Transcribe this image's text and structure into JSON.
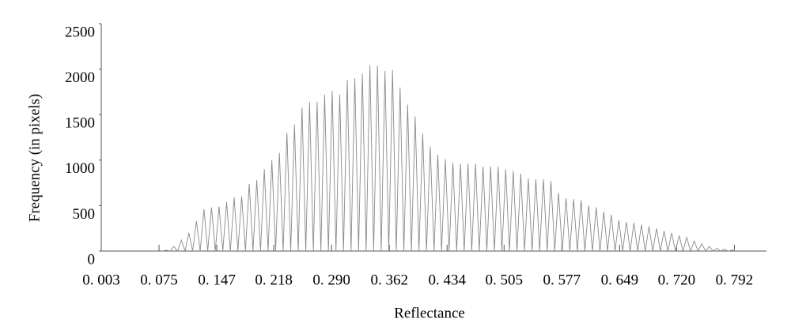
{
  "chart_data": {
    "type": "line",
    "xlabel": "Reflectance",
    "ylabel": "Frequency (in pixels)",
    "xlim": [
      0.003,
      0.832
    ],
    "ylim": [
      0,
      2500
    ],
    "xticks": [
      {
        "value": 0.003,
        "label": "0. 003"
      },
      {
        "value": 0.075,
        "label": "0. 075"
      },
      {
        "value": 0.147,
        "label": "0. 147"
      },
      {
        "value": 0.218,
        "label": "0. 218"
      },
      {
        "value": 0.29,
        "label": "0. 290"
      },
      {
        "value": 0.362,
        "label": "0. 362"
      },
      {
        "value": 0.434,
        "label": "0. 434"
      },
      {
        "value": 0.505,
        "label": "0. 505"
      },
      {
        "value": 0.577,
        "label": "0. 577"
      },
      {
        "value": 0.649,
        "label": "0. 649"
      },
      {
        "value": 0.72,
        "label": "0. 720"
      },
      {
        "value": 0.792,
        "label": "0. 792"
      }
    ],
    "yticks": [
      0,
      500,
      1000,
      1500,
      2000,
      2500
    ],
    "grid": false,
    "color": "#8a8a8a",
    "x": [
      0.0793,
      0.084,
      0.0887,
      0.0934,
      0.0981,
      0.1028,
      0.1075,
      0.1122,
      0.1169,
      0.1216,
      0.1263,
      0.131,
      0.1357,
      0.1404,
      0.1451,
      0.1498,
      0.1545,
      0.1592,
      0.1639,
      0.1686,
      0.1733,
      0.178,
      0.1827,
      0.1874,
      0.1921,
      0.1968,
      0.2015,
      0.2062,
      0.2109,
      0.2156,
      0.2203,
      0.225,
      0.2297,
      0.2344,
      0.2391,
      0.2438,
      0.2485,
      0.2532,
      0.2579,
      0.2626,
      0.2673,
      0.272,
      0.2767,
      0.2814,
      0.2861,
      0.2908,
      0.2955,
      0.3002,
      0.3049,
      0.3096,
      0.3143,
      0.319,
      0.3237,
      0.3284,
      0.3331,
      0.3378,
      0.3425,
      0.3472,
      0.3519,
      0.3566,
      0.3613,
      0.366,
      0.3707,
      0.3754,
      0.3801,
      0.3848,
      0.3895,
      0.3942,
      0.3989,
      0.4036,
      0.4083,
      0.413,
      0.4177,
      0.4224,
      0.4271,
      0.4318,
      0.4365,
      0.4412,
      0.4459,
      0.4506,
      0.4553,
      0.46,
      0.4647,
      0.4694,
      0.4741,
      0.4788,
      0.4835,
      0.4882,
      0.4929,
      0.4976,
      0.5023,
      0.507,
      0.5117,
      0.5164,
      0.5211,
      0.5258,
      0.5305,
      0.5352,
      0.5399,
      0.5446,
      0.5493,
      0.554,
      0.5587,
      0.5634,
      0.5681,
      0.5728,
      0.5775,
      0.5822,
      0.5869,
      0.5916,
      0.5963,
      0.601,
      0.6057,
      0.6104,
      0.6151,
      0.6198,
      0.6245,
      0.6292,
      0.6339,
      0.6386,
      0.6433,
      0.648,
      0.6527,
      0.6574,
      0.6621,
      0.6668,
      0.6715,
      0.6762,
      0.6809,
      0.6856,
      0.6903,
      0.695,
      0.6997,
      0.7044,
      0.7091,
      0.7138,
      0.7185,
      0.7232,
      0.7279,
      0.7326,
      0.7373,
      0.742,
      0.7467,
      0.7514,
      0.7561,
      0.7608,
      0.7655,
      0.7702,
      0.7749,
      0.7796,
      0.7843,
      0.789,
      0.7937
    ],
    "values": [
      0,
      10,
      0,
      50,
      0,
      120,
      0,
      200,
      0,
      330,
      0,
      460,
      0,
      480,
      0,
      490,
      0,
      540,
      0,
      590,
      0,
      600,
      0,
      740,
      0,
      780,
      0,
      900,
      0,
      1000,
      0,
      1080,
      0,
      1300,
      0,
      1390,
      0,
      1580,
      0,
      1640,
      0,
      1640,
      0,
      1720,
      0,
      1760,
      0,
      1720,
      0,
      1880,
      0,
      1900,
      0,
      1950,
      0,
      2040,
      0,
      2040,
      0,
      1980,
      0,
      1990,
      0,
      1800,
      0,
      1610,
      0,
      1480,
      0,
      1290,
      0,
      1150,
      0,
      1060,
      0,
      1010,
      0,
      970,
      0,
      960,
      0,
      960,
      0,
      960,
      0,
      930,
      0,
      930,
      0,
      930,
      0,
      900,
      0,
      880,
      0,
      850,
      0,
      800,
      0,
      790,
      0,
      790,
      0,
      770,
      0,
      640,
      0,
      580,
      0,
      570,
      0,
      560,
      0,
      500,
      0,
      480,
      0,
      430,
      0,
      400,
      0,
      340,
      0,
      320,
      0,
      310,
      0,
      290,
      0,
      270,
      0,
      250,
      0,
      220,
      0,
      200,
      0,
      170,
      0,
      150,
      0,
      110,
      0,
      80,
      0,
      50,
      0,
      30,
      0,
      20,
      0,
      10,
      0
    ]
  }
}
